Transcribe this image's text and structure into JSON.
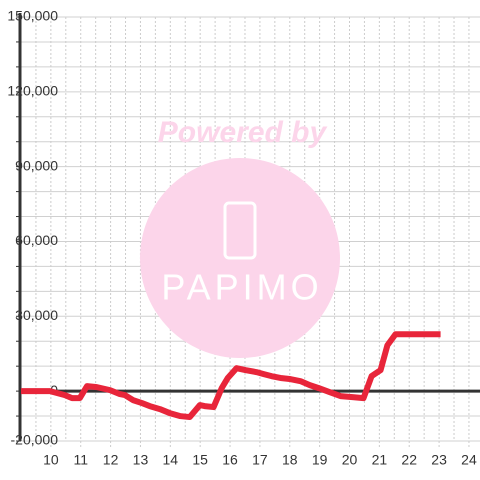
{
  "chart_data": {
    "type": "line",
    "watermark": {
      "text": "Powered by",
      "brand": "PAPIMO"
    },
    "x": [
      9,
      9.97,
      10.47,
      10.71,
      10.97,
      11.21,
      11.54,
      11.98,
      12.31,
      12.48,
      12.75,
      13.05,
      13.31,
      13.65,
      13.98,
      14.32,
      14.65,
      14.99,
      15.15,
      15.45,
      15.72,
      15.92,
      16.22,
      16.53,
      16.89,
      17.13,
      17.39,
      17.73,
      18.03,
      18.36,
      18.67,
      18.97,
      19.33,
      19.7,
      20.1,
      20.47,
      20.74,
      21.04,
      21.27,
      21.54,
      23.05
    ],
    "series": [
      {
        "color": "#e8253a",
        "values": [
          0,
          0,
          -1600,
          -2800,
          -2800,
          2000,
          1600,
          400,
          -1200,
          -1600,
          -3600,
          -4800,
          -6000,
          -7200,
          -8800,
          -10000,
          -10400,
          -5600,
          -6000,
          -6400,
          1200,
          5200,
          9200,
          8400,
          7600,
          6800,
          6000,
          5200,
          4800,
          4000,
          2400,
          1200,
          -400,
          -2000,
          -2400,
          -2800,
          6000,
          8400,
          18400,
          22800,
          22800
        ]
      }
    ],
    "xlim": [
      9,
      24.37
    ],
    "xticks": [
      10,
      11,
      12,
      13,
      14,
      15,
      16,
      17,
      18,
      19,
      20,
      21,
      22,
      23,
      24
    ],
    "xminorticks": [
      9.5,
      10.5,
      11.5,
      12.5,
      13.5,
      14.5,
      15.5,
      16.5,
      17.5,
      18.5,
      19.5,
      20.5,
      21.5,
      22.5,
      23.5
    ],
    "ylim": [
      -20000,
      150000
    ],
    "yticks": [
      {
        "value": -20000,
        "label": "-20,000"
      },
      0,
      {
        "value": 30000,
        "label": "30,000"
      },
      {
        "value": 60000,
        "label": "60,000"
      },
      {
        "value": 90000,
        "label": "90,000"
      },
      {
        "value": 120000,
        "label": "120,000"
      },
      {
        "value": 150000,
        "label": "150,000"
      }
    ],
    "yminorticks": [
      -10000,
      10000,
      20000,
      40000,
      50000,
      70000,
      80000,
      100000,
      110000,
      130000,
      140000
    ],
    "grid": true
  }
}
